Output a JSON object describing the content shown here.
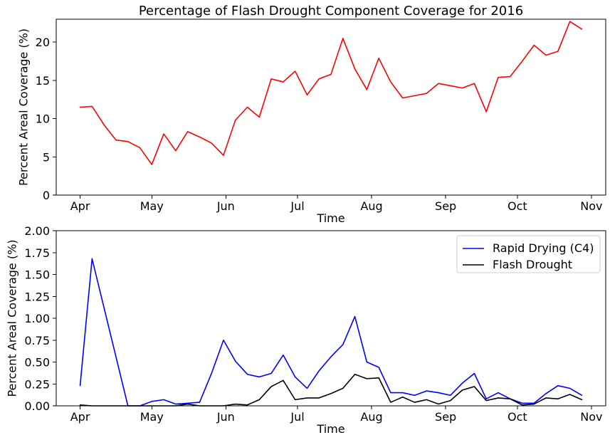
{
  "chart_data": [
    {
      "type": "line",
      "title": "Percentage of Flash Drought Component Coverage for 2016",
      "xlabel": "Time",
      "ylabel": "Percent Areal Coverage (%)",
      "x_ticks": [
        "Apr",
        "May",
        "Jun",
        "Jul",
        "Aug",
        "Sep",
        "Oct",
        "Nov"
      ],
      "x_tick_dates": [
        "2016-04-01",
        "2016-05-01",
        "2016-06-01",
        "2016-07-01",
        "2016-08-01",
        "2016-09-01",
        "2016-10-01",
        "2016-11-01"
      ],
      "xlim": [
        "2016-03-22",
        "2016-11-07"
      ],
      "ylim": [
        0,
        23
      ],
      "y_ticks": [
        "0",
        "5",
        "10",
        "15",
        "20"
      ],
      "grid": false,
      "series": [
        {
          "color": "#ff0000",
          "x": [
            "2016-04-01",
            "2016-04-06",
            "2016-04-11",
            "2016-04-16",
            "2016-04-21",
            "2016-04-26",
            "2016-05-01",
            "2016-05-06",
            "2016-05-11",
            "2016-05-16",
            "2016-05-21",
            "2016-05-26",
            "2016-05-31",
            "2016-06-05",
            "2016-06-10",
            "2016-06-15",
            "2016-06-20",
            "2016-06-25",
            "2016-06-30",
            "2016-07-05",
            "2016-07-10",
            "2016-07-15",
            "2016-07-20",
            "2016-07-25",
            "2016-07-30",
            "2016-08-04",
            "2016-08-09",
            "2016-08-14",
            "2016-08-19",
            "2016-08-24",
            "2016-08-29",
            "2016-09-03",
            "2016-09-08",
            "2016-09-13",
            "2016-09-18",
            "2016-09-23",
            "2016-09-28",
            "2016-10-03",
            "2016-10-08",
            "2016-10-13",
            "2016-10-18",
            "2016-10-23",
            "2016-10-28"
          ],
          "y": [
            11.5,
            11.6,
            9.2,
            7.2,
            7.0,
            6.2,
            4.0,
            8.0,
            5.8,
            8.3,
            7.6,
            6.8,
            5.2,
            9.8,
            11.5,
            10.2,
            15.2,
            14.8,
            16.2,
            13.1,
            15.2,
            15.8,
            20.5,
            16.5,
            13.8,
            17.9,
            14.8,
            12.7,
            13.0,
            13.3,
            14.6,
            14.3,
            14.0,
            14.6,
            10.9,
            15.4,
            15.5,
            17.5,
            19.6,
            18.3,
            18.8,
            22.7,
            21.7
          ]
        }
      ]
    },
    {
      "type": "line",
      "title": "",
      "xlabel": "Time",
      "ylabel": "Percent Areal Coverage (%)",
      "x_ticks": [
        "Apr",
        "May",
        "Jun",
        "Jul",
        "Aug",
        "Sep",
        "Oct",
        "Nov"
      ],
      "x_tick_dates": [
        "2016-04-01",
        "2016-05-01",
        "2016-06-01",
        "2016-07-01",
        "2016-08-01",
        "2016-09-01",
        "2016-10-01",
        "2016-11-01"
      ],
      "xlim": [
        "2016-03-22",
        "2016-11-07"
      ],
      "ylim": [
        0,
        2.0
      ],
      "y_ticks": [
        "0.00",
        "0.25",
        "0.50",
        "0.75",
        "1.00",
        "1.25",
        "1.50",
        "1.75",
        "2.00"
      ],
      "grid": false,
      "legend": "top-right",
      "series": [
        {
          "name": "Rapid Drying (C4)",
          "color": "#0000ff",
          "x": [
            "2016-04-01",
            "2016-04-06",
            "2016-04-11",
            "2016-04-16",
            "2016-04-21",
            "2016-04-26",
            "2016-05-01",
            "2016-05-06",
            "2016-05-11",
            "2016-05-16",
            "2016-05-21",
            "2016-05-26",
            "2016-05-31",
            "2016-06-05",
            "2016-06-10",
            "2016-06-15",
            "2016-06-20",
            "2016-06-25",
            "2016-06-30",
            "2016-07-05",
            "2016-07-10",
            "2016-07-15",
            "2016-07-20",
            "2016-07-25",
            "2016-07-30",
            "2016-08-04",
            "2016-08-09",
            "2016-08-14",
            "2016-08-19",
            "2016-08-24",
            "2016-08-29",
            "2016-09-03",
            "2016-09-08",
            "2016-09-13",
            "2016-09-18",
            "2016-09-23",
            "2016-09-28",
            "2016-10-03",
            "2016-10-08",
            "2016-10-13",
            "2016-10-18",
            "2016-10-23",
            "2016-10-28"
          ],
          "y": [
            0.23,
            1.68,
            1.12,
            0.56,
            0.0,
            0.0,
            0.05,
            0.07,
            0.02,
            0.03,
            0.04,
            0.37,
            0.75,
            0.51,
            0.36,
            0.33,
            0.37,
            0.58,
            0.33,
            0.2,
            0.4,
            0.56,
            0.7,
            1.02,
            0.5,
            0.44,
            0.15,
            0.15,
            0.12,
            0.17,
            0.15,
            0.12,
            0.26,
            0.37,
            0.08,
            0.15,
            0.08,
            0.03,
            0.03,
            0.14,
            0.23,
            0.2,
            0.12
          ]
        },
        {
          "name": "Flash Drought",
          "color": "#000000",
          "x": [
            "2016-04-01",
            "2016-04-06",
            "2016-04-11",
            "2016-04-16",
            "2016-04-21",
            "2016-04-26",
            "2016-05-01",
            "2016-05-06",
            "2016-05-11",
            "2016-05-16",
            "2016-05-21",
            "2016-05-26",
            "2016-05-31",
            "2016-06-05",
            "2016-06-10",
            "2016-06-15",
            "2016-06-20",
            "2016-06-25",
            "2016-06-30",
            "2016-07-05",
            "2016-07-10",
            "2016-07-15",
            "2016-07-20",
            "2016-07-25",
            "2016-07-30",
            "2016-08-04",
            "2016-08-09",
            "2016-08-14",
            "2016-08-19",
            "2016-08-24",
            "2016-08-29",
            "2016-09-03",
            "2016-09-08",
            "2016-09-13",
            "2016-09-18",
            "2016-09-23",
            "2016-09-28",
            "2016-10-03",
            "2016-10-08",
            "2016-10-13",
            "2016-10-18",
            "2016-10-23",
            "2016-10-28"
          ],
          "y": [
            0.01,
            0.0,
            0.0,
            0.0,
            0.0,
            0.0,
            0.0,
            0.0,
            0.0,
            0.02,
            0.0,
            0.0,
            0.0,
            0.02,
            0.01,
            0.07,
            0.22,
            0.29,
            0.07,
            0.09,
            0.09,
            0.14,
            0.2,
            0.36,
            0.31,
            0.32,
            0.04,
            0.1,
            0.04,
            0.07,
            0.02,
            0.06,
            0.18,
            0.22,
            0.06,
            0.09,
            0.08,
            0.01,
            0.02,
            0.09,
            0.08,
            0.13,
            0.07
          ]
        }
      ]
    }
  ]
}
